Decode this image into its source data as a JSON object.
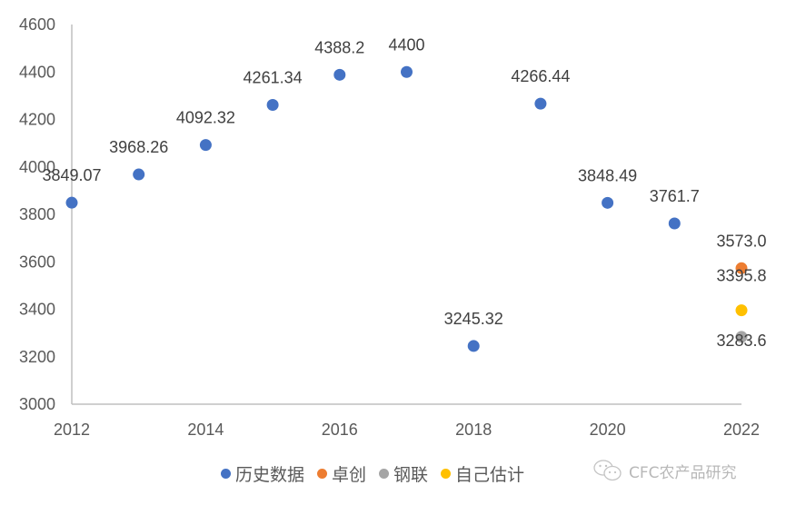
{
  "chart_data": {
    "type": "scatter",
    "title": "",
    "xlabel": "",
    "ylabel": "",
    "xlim": [
      2012,
      2022
    ],
    "ylim": [
      3000,
      4600
    ],
    "x_ticks": [
      "2012",
      "2014",
      "2016",
      "2018",
      "2020",
      "2022"
    ],
    "y_ticks": [
      "3000",
      "3200",
      "3400",
      "3600",
      "3800",
      "4000",
      "4200",
      "4400",
      "4600"
    ],
    "grid": false,
    "legend_position": "bottom",
    "series": [
      {
        "name": "历史数据",
        "color": "#4472C4",
        "points": [
          {
            "x": 2012,
            "y": 3849.07,
            "label": "3849.07"
          },
          {
            "x": 2013,
            "y": 3968.26,
            "label": "3968.26"
          },
          {
            "x": 2014,
            "y": 4092.32,
            "label": "4092.32"
          },
          {
            "x": 2015,
            "y": 4261.34,
            "label": "4261.34"
          },
          {
            "x": 2016,
            "y": 4388.2,
            "label": "4388.2"
          },
          {
            "x": 2017,
            "y": 4400,
            "label": "4400"
          },
          {
            "x": 2018,
            "y": 3245.32,
            "label": "3245.32"
          },
          {
            "x": 2019,
            "y": 4266.44,
            "label": "4266.44"
          },
          {
            "x": 2020,
            "y": 3848.49,
            "label": "3848.49"
          },
          {
            "x": 2021,
            "y": 3761.7,
            "label": "3761.7"
          }
        ]
      },
      {
        "name": "卓创",
        "color": "#ED7D31",
        "points": [
          {
            "x": 2022,
            "y": 3573.0,
            "label": "3573.0"
          }
        ]
      },
      {
        "name": "钢联",
        "color": "#A5A5A5",
        "points": [
          {
            "x": 2022,
            "y": 3283.6,
            "label": "3283.6"
          }
        ]
      },
      {
        "name": "自己估计",
        "color": "#FFC000",
        "points": [
          {
            "x": 2022,
            "y": 3395.8,
            "label": "3395.8"
          }
        ]
      }
    ]
  },
  "legend": {
    "items": [
      {
        "label": "历史数据",
        "color": "#4472C4"
      },
      {
        "label": "卓创",
        "color": "#ED7D31"
      },
      {
        "label": "钢联",
        "color": "#A5A5A5"
      },
      {
        "label": "自己估计",
        "color": "#FFC000"
      }
    ]
  },
  "watermark": {
    "text": "CFC农产品研究",
    "icon": "wechat-icon"
  }
}
